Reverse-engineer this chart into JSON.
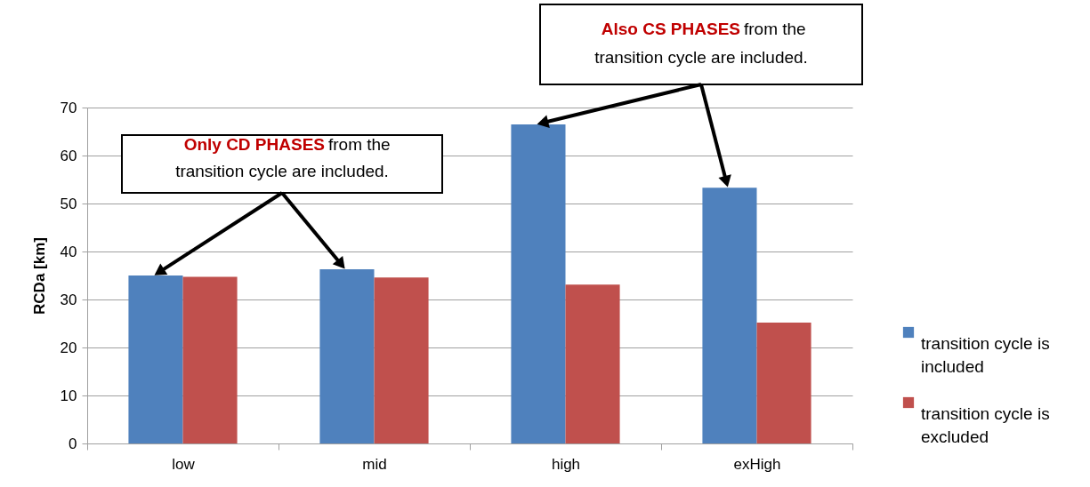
{
  "chart_data": {
    "type": "bar",
    "categories": [
      "low",
      "mid",
      "high",
      "exHigh"
    ],
    "ylabel": "RCDa [km]",
    "ylim": [
      0,
      70
    ],
    "yticks": [
      0,
      10,
      20,
      30,
      40,
      50,
      60,
      70
    ],
    "grid": "y",
    "legend": "right",
    "series": [
      {
        "name": "transition cycle is included",
        "color": "#4f81bd",
        "values": [
          35.0,
          36.3,
          66.5,
          53.3
        ]
      },
      {
        "name": "transition cycle is excluded",
        "color": "#c0504d",
        "values": [
          34.7,
          34.6,
          33.1,
          25.2
        ]
      }
    ],
    "annotations": [
      "Only CD PHASES",
      "from the transition cycle are included.",
      "Also CS PHASES",
      "from the transition cycle are included."
    ]
  }
}
